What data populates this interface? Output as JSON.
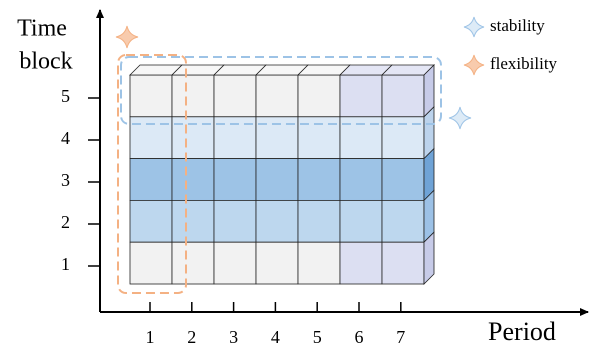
{
  "axes": {
    "y_label_lines": [
      "Time",
      "block"
    ],
    "x_label": "Period",
    "x_ticks": [
      "1",
      "2",
      "3",
      "4",
      "5",
      "6",
      "7"
    ],
    "y_ticks": [
      "1",
      "2",
      "3",
      "4",
      "5"
    ]
  },
  "legend": [
    {
      "label": "stability"
    },
    {
      "label": "flexibility"
    }
  ]
}
